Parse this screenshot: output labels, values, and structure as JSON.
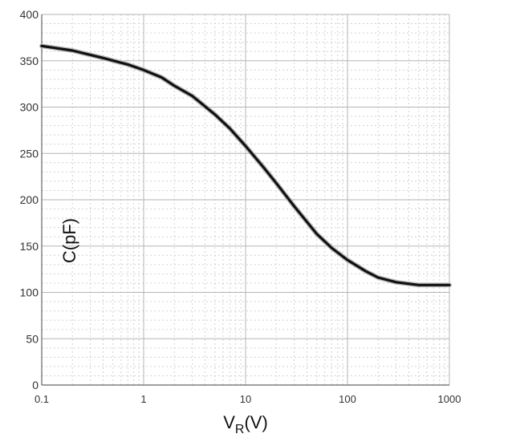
{
  "chart_data": {
    "type": "line",
    "title": "",
    "xlabel": "V_R(V)",
    "xlabel_main": "V",
    "xlabel_sub": "R",
    "xlabel_unit": "(V)",
    "ylabel": "C(pF)",
    "x_scale": "log",
    "xlim": [
      0.1,
      1000
    ],
    "ylim": [
      0,
      400
    ],
    "x_ticks": [
      0.1,
      1,
      10,
      100,
      1000
    ],
    "x_tick_labels": [
      "0.1",
      "1",
      "10",
      "100",
      "1000"
    ],
    "y_ticks": [
      0,
      50,
      100,
      150,
      200,
      250,
      300,
      350,
      400
    ],
    "y_tick_labels": [
      "0",
      "50",
      "100",
      "150",
      "200",
      "250",
      "300",
      "350",
      "400"
    ],
    "grid": true,
    "series": [
      {
        "x": [
          0.1,
          0.2,
          0.4,
          0.7,
          1,
          1.5,
          2,
          3,
          5,
          7,
          10,
          15,
          20,
          30,
          50,
          70,
          100,
          150,
          200,
          300,
          500,
          700,
          1000
        ],
        "y": [
          366,
          361,
          353,
          346,
          340,
          332,
          323,
          312,
          292,
          277,
          258,
          235,
          218,
          193,
          163,
          148,
          135,
          123,
          116,
          111,
          108,
          108,
          108
        ],
        "color": "#111111"
      }
    ]
  }
}
